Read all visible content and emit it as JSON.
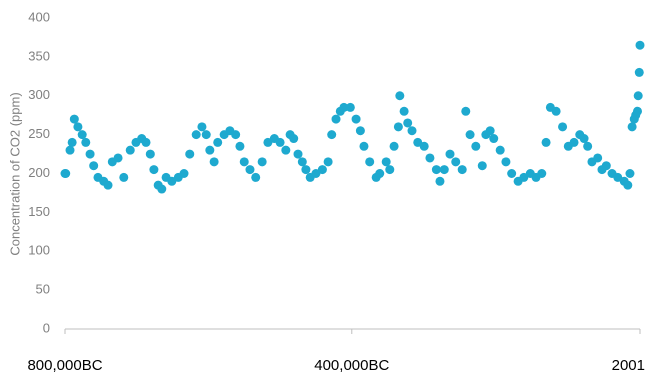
{
  "chart_data": {
    "type": "scatter",
    "y_label": "Concentration of CO2 (ppm)",
    "series": [
      {
        "color": "#1ea9cf",
        "x": [
          -800000,
          -799000,
          -793000,
          -790000,
          -787000,
          -782000,
          -776000,
          -771000,
          -765000,
          -760000,
          -754000,
          -746000,
          -740000,
          -734000,
          -726000,
          -718000,
          -709000,
          -701000,
          -693000,
          -687000,
          -681000,
          -676000,
          -670000,
          -665000,
          -659000,
          -651000,
          -642000,
          -634000,
          -626000,
          -617000,
          -609000,
          -603000,
          -598000,
          -592000,
          -587000,
          -578000,
          -570000,
          -562000,
          -556000,
          -550000,
          -542000,
          -534000,
          -525000,
          -517000,
          -508000,
          -500000,
          -492000,
          -486000,
          -481000,
          -475000,
          -469000,
          -464000,
          -458000,
          -450000,
          -441000,
          -433000,
          -428000,
          -422000,
          -416000,
          -411000,
          -402000,
          -394000,
          -388000,
          -383000,
          -375000,
          -366000,
          -361000,
          -352000,
          -347000,
          -341000,
          -335000,
          -333000,
          -327000,
          -322000,
          -316000,
          -308000,
          -299000,
          -291000,
          -282000,
          -277000,
          -271000,
          -263000,
          -255000,
          -246000,
          -241000,
          -235000,
          -227000,
          -218000,
          -213000,
          -207000,
          -202000,
          -193000,
          -185000,
          -177000,
          -168000,
          -160000,
          -151000,
          -143000,
          -135000,
          -129000,
          -123000,
          -115000,
          -106000,
          -98000,
          -90000,
          -82000,
          -76000,
          -71000,
          -65000,
          -57000,
          -51000,
          -45000,
          -37000,
          -29000,
          -20000,
          -15000,
          -12000,
          -9000,
          -6000,
          -4000,
          -1500,
          -500,
          1000,
          2001
        ],
        "values": [
          200,
          200,
          230,
          240,
          270,
          260,
          250,
          240,
          225,
          210,
          195,
          190,
          185,
          215,
          220,
          195,
          230,
          240,
          245,
          240,
          225,
          205,
          185,
          180,
          195,
          190,
          195,
          200,
          225,
          250,
          260,
          250,
          230,
          215,
          240,
          250,
          255,
          250,
          235,
          215,
          205,
          195,
          215,
          240,
          245,
          240,
          230,
          250,
          245,
          225,
          215,
          205,
          195,
          200,
          205,
          215,
          250,
          270,
          280,
          285,
          285,
          270,
          255,
          235,
          215,
          195,
          200,
          215,
          205,
          235,
          260,
          300,
          280,
          265,
          255,
          240,
          235,
          220,
          205,
          190,
          205,
          225,
          215,
          205,
          280,
          250,
          235,
          210,
          250,
          255,
          245,
          230,
          215,
          200,
          190,
          195,
          200,
          195,
          200,
          240,
          285,
          280,
          260,
          235,
          240,
          250,
          245,
          235,
          215,
          220,
          205,
          210,
          200,
          195,
          190,
          185,
          200,
          260,
          270,
          275,
          280,
          300,
          330,
          365
        ]
      }
    ],
    "xlim": [
      -800000,
      2001
    ],
    "xticks": [
      {
        "value": -800000,
        "label": "800,000BC"
      },
      {
        "value": -400000,
        "label": "400,000BC"
      },
      {
        "value": 2001,
        "label": "2001"
      }
    ],
    "ylim": [
      0,
      400
    ],
    "yticks": [
      0,
      50,
      100,
      150,
      200,
      250,
      300,
      350,
      400
    ],
    "grid": false
  }
}
